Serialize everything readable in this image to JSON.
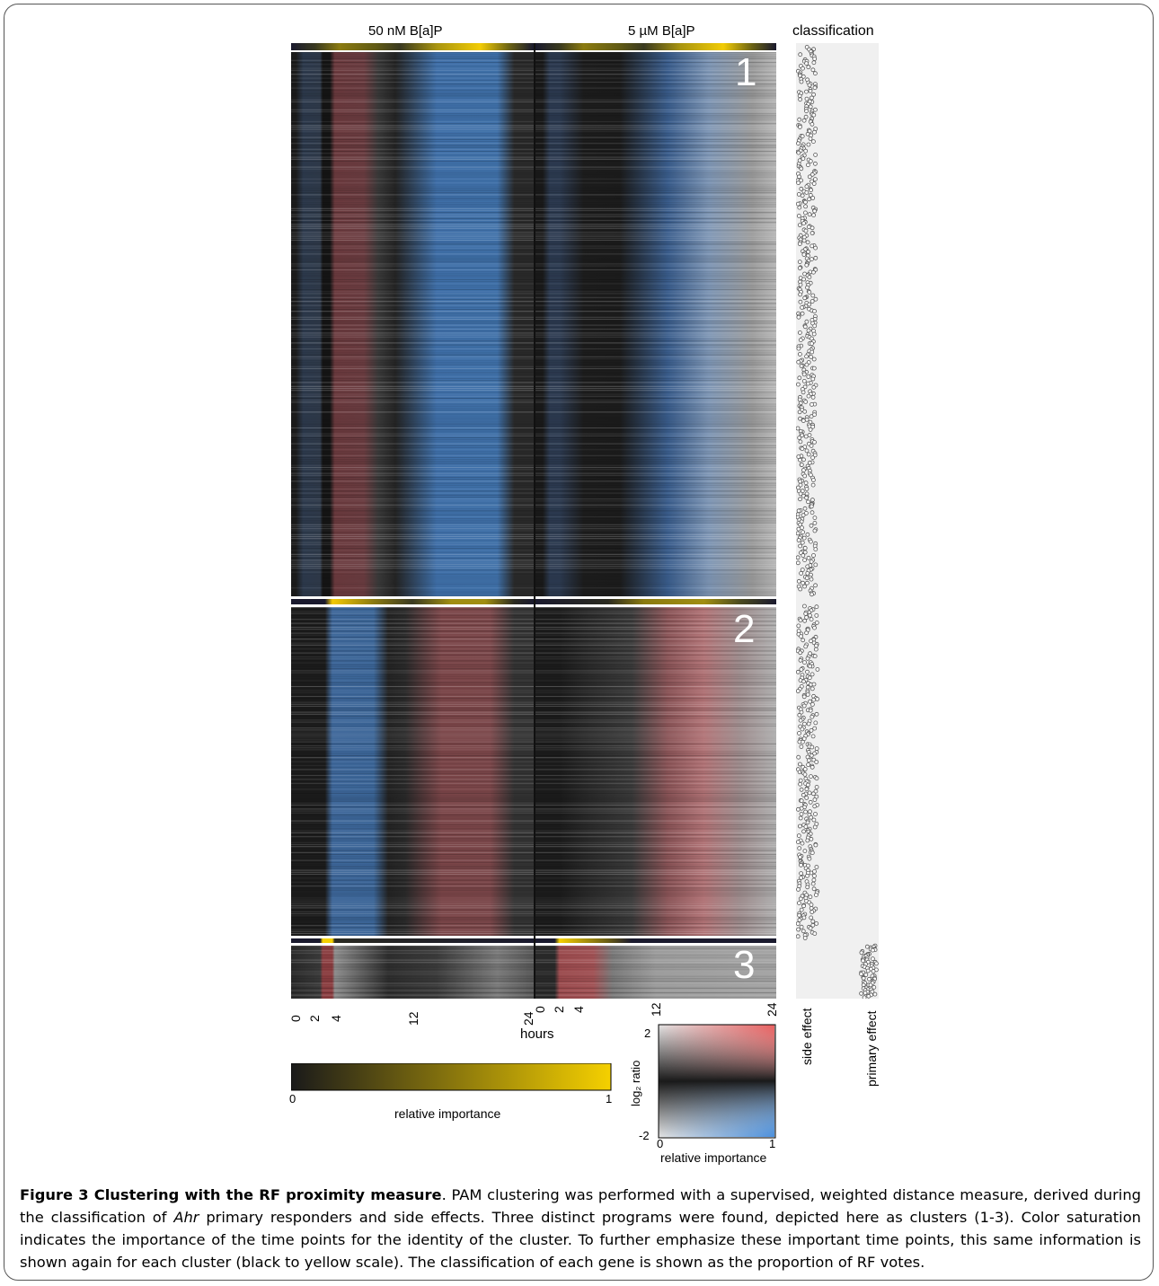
{
  "figure": {
    "conditions": [
      "50 nM B[a]P",
      "5 µM B[a]P"
    ],
    "classification_title": "classification",
    "cluster_labels": [
      "1",
      "2",
      "3"
    ],
    "time_ticks_condition1": [
      "0",
      "2",
      "4",
      "12",
      "24"
    ],
    "time_ticks_condition2": [
      "0",
      "2",
      "4",
      "12",
      "24"
    ],
    "time_axis_label": "hours",
    "importance_scale": {
      "min_label": "0",
      "max_label": "1",
      "label": "relative importance",
      "colors": [
        "#1a1a1a",
        "#f5d000"
      ]
    },
    "ratio_legend": {
      "y_label": "log₂ ratio",
      "y_max": "2",
      "y_min": "-2",
      "x_min": "0",
      "x_max": "1",
      "x_label": "relative importance",
      "colors": {
        "high": "#e85a5a",
        "low": "#4a8fdc",
        "neutral": "#1a1a1a",
        "faded": "#e6e6e6"
      }
    },
    "classification_columns": [
      "side effect",
      "primary effect"
    ]
  },
  "caption": {
    "label": "Figure 3 Clustering with the RF proximity measure",
    "text_1": ". PAM clustering was performed with a supervised, weighted distance measure, derived during the classification of ",
    "gene": "Ahr",
    "text_2": " primary responders and side effects. Three distinct programs were found, depicted here as clusters (1-3). Color saturation indicates the importance of the time points for the identity of the cluster. To further emphasize these important time points, this same information is shown again for each cluster (black to yellow scale). The classification of each gene is shown as the proportion of RF votes."
  }
}
